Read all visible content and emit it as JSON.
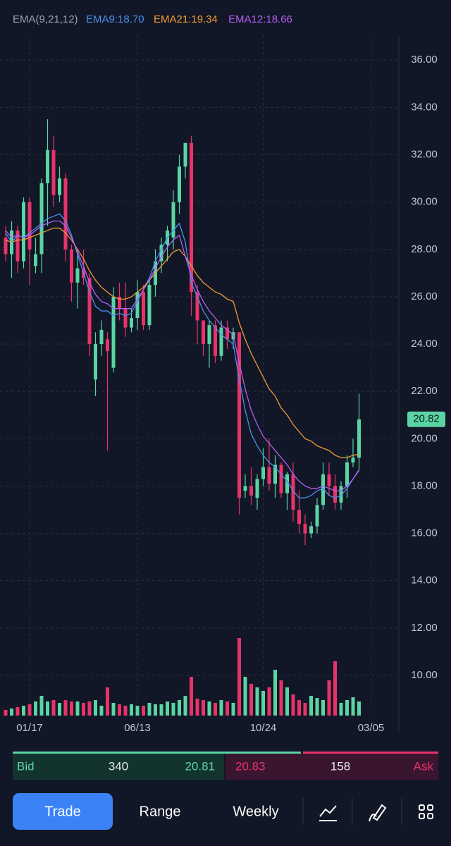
{
  "header": {
    "indicator": "EMA(9,21,12)",
    "ema9": "EMA9:18.70",
    "ema21": "EMA21:19.34",
    "ema12": "EMA12:18.66"
  },
  "chart_data": {
    "type": "candlestick",
    "categories": [
      null,
      null,
      null,
      null,
      "01/17",
      null,
      null,
      null,
      null,
      null,
      null,
      null,
      null,
      null,
      null,
      null,
      null,
      null,
      null,
      null,
      null,
      null,
      "06/13",
      null,
      null,
      null,
      null,
      null,
      null,
      null,
      null,
      null,
      null,
      null,
      null,
      null,
      null,
      null,
      null,
      null,
      null,
      null,
      null,
      "10/24",
      null,
      null,
      null,
      null,
      null,
      null,
      null,
      null,
      null,
      null,
      null,
      null,
      null,
      null,
      null,
      null,
      null,
      "03/05"
    ],
    "open": [
      28.5,
      27.8,
      28.8,
      27.5,
      30,
      27.3,
      27.8,
      30.8,
      32.2,
      30.3,
      31,
      28,
      26.6,
      27.2,
      26.8,
      22.5,
      24,
      24.2,
      23,
      26,
      25.5,
      24.7,
      25.1,
      26.2,
      24.8,
      26.5,
      27.5,
      28.2,
      28.5,
      30,
      31.5,
      32.5,
      26.2,
      25,
      24,
      24.8,
      23.5,
      24.7,
      24.2,
      24.5,
      17.8,
      18,
      17.5,
      18.3,
      18.8,
      18.1,
      18.9,
      17.7,
      18.5,
      17,
      16.4,
      16,
      16.3,
      17.2,
      18.5,
      18,
      17.3,
      18,
      19,
      19.2,
      null,
      null
    ],
    "high": [
      29,
      29.2,
      29,
      30.2,
      30.2,
      28.5,
      31,
      33.5,
      32.8,
      31.5,
      31.2,
      28.2,
      28,
      28,
      27,
      24.5,
      25,
      24.5,
      26.4,
      26.6,
      26.6,
      25.5,
      26.7,
      26.5,
      26.7,
      28,
      28.5,
      29,
      30.5,
      32,
      32.5,
      32.8,
      26.5,
      25,
      25,
      25,
      25,
      25,
      24.7,
      24.5,
      18.5,
      18.8,
      18.5,
      19.6,
      20,
      19.3,
      19,
      18.6,
      19,
      17.8,
      16.8,
      16.5,
      17.5,
      19,
      19,
      18.5,
      18.2,
      19.3,
      20,
      21.9,
      null,
      null
    ],
    "low": [
      27.5,
      26.8,
      27,
      27.2,
      26.5,
      27,
      27,
      29,
      29.8,
      30,
      27.5,
      25.8,
      25.5,
      26.5,
      23.5,
      21.8,
      23.5,
      19.5,
      22.8,
      25,
      24.3,
      24.5,
      24.6,
      24.6,
      24.6,
      26,
      27,
      27.5,
      28,
      29.5,
      31,
      25.2,
      24,
      23.5,
      23,
      23.2,
      23.3,
      23.8,
      23.8,
      16.8,
      17.5,
      17.2,
      17,
      18,
      17.8,
      17.5,
      17.5,
      17,
      16.5,
      16,
      15.5,
      15.8,
      16,
      17,
      17.6,
      17,
      17,
      17.5,
      18.8,
      18.7,
      null,
      null
    ],
    "close": [
      27.8,
      28.8,
      27.5,
      30,
      28,
      27.8,
      30.8,
      32.2,
      30.3,
      31,
      28,
      26.6,
      27.2,
      26.8,
      24,
      24,
      24.6,
      23.7,
      26,
      25.5,
      24.7,
      25.1,
      26.2,
      24.8,
      26.5,
      27.5,
      28.2,
      28.8,
      30,
      31.5,
      32.5,
      26.2,
      25,
      24,
      24.8,
      23.5,
      24.7,
      24.2,
      24.5,
      17.5,
      18,
      17.6,
      18.3,
      18.8,
      18.1,
      18.9,
      17.7,
      18.5,
      17,
      16.4,
      16,
      16.3,
      17.2,
      18.5,
      18,
      17.3,
      18,
      19,
      19.2,
      20.82,
      null,
      null
    ],
    "volume": [
      8,
      10,
      12,
      14,
      16,
      20,
      28,
      20,
      22,
      18,
      22,
      20,
      20,
      18,
      20,
      22,
      14,
      40,
      18,
      16,
      14,
      16,
      14,
      14,
      18,
      16,
      16,
      20,
      18,
      22,
      28,
      55,
      24,
      22,
      20,
      18,
      22,
      20,
      18,
      110,
      55,
      45,
      40,
      35,
      40,
      65,
      50,
      40,
      30,
      22,
      18,
      28,
      25,
      22,
      50,
      77,
      18,
      22,
      26,
      20,
      null,
      null
    ],
    "volume_ylim": [
      0,
      120
    ],
    "up_color": "#5ad4a3",
    "down_color": "#e8336a",
    "series": [
      {
        "name": "EMA9",
        "color": "#4b8ff0",
        "values": [
          28.7,
          28.3,
          28.6,
          28.5,
          28.7,
          28.9,
          29.1,
          29.3,
          29.4,
          29.5,
          29.2,
          28.6,
          27.8,
          27.0,
          26.2,
          25.6,
          25.4,
          25.4,
          25.2,
          25.3,
          25.2,
          25.3,
          25.8,
          26.3,
          26.8,
          27.5,
          28.0,
          28.5,
          28.8,
          29.1,
          28.3,
          26.6,
          26.0,
          25.4,
          25.0,
          24.7,
          24.4,
          24.2,
          24.0,
          22.5,
          21.2,
          20.2,
          19.7,
          19.3,
          19.0,
          18.8,
          18.5,
          18.2,
          17.8,
          17.5,
          17.5,
          17.6,
          17.8,
          17.9,
          17.6,
          17.5,
          17.6,
          17.9,
          18.3,
          18.7,
          null,
          null
        ]
      },
      {
        "name": "EMA21",
        "color": "#f29a38",
        "values": [
          28.4,
          28.3,
          28.4,
          28.4,
          28.5,
          28.6,
          28.7,
          28.8,
          28.9,
          28.9,
          28.7,
          28.4,
          28.0,
          27.6,
          27.1,
          26.7,
          26.4,
          26.2,
          26.0,
          25.9,
          25.9,
          26.0,
          26.2,
          26.4,
          26.7,
          27.0,
          27.3,
          27.6,
          27.9,
          28.0,
          27.7,
          27.3,
          26.9,
          26.6,
          26.4,
          26.2,
          26.1,
          25.9,
          25.8,
          24.9,
          24.2,
          23.6,
          23.1,
          22.6,
          22.1,
          21.8,
          21.3,
          21.0,
          20.6,
          20.3,
          20.0,
          19.9,
          19.7,
          19.6,
          19.5,
          19.3,
          19.2,
          19.2,
          19.3,
          19.34,
          null,
          null
        ]
      },
      {
        "name": "EMA12",
        "color": "#b65df5",
        "values": [
          28.8,
          28.5,
          28.6,
          28.5,
          28.6,
          28.8,
          29.0,
          29.1,
          29.2,
          29.2,
          29.0,
          28.5,
          27.9,
          27.3,
          26.6,
          26.1,
          25.8,
          25.7,
          25.5,
          25.5,
          25.5,
          25.5,
          25.9,
          26.3,
          26.7,
          27.2,
          27.7,
          28.1,
          28.4,
          28.6,
          27.7,
          26.9,
          26.3,
          25.8,
          25.4,
          25.1,
          24.8,
          24.6,
          24.4,
          23.2,
          22.1,
          21.2,
          20.6,
          20.1,
          19.8,
          19.5,
          19.2,
          18.9,
          18.5,
          18.2,
          18.0,
          17.9,
          17.9,
          18.0,
          17.9,
          17.8,
          17.8,
          18.0,
          18.3,
          18.66,
          null,
          null
        ]
      }
    ],
    "ylim": [
      8.3,
      37.2
    ],
    "yticks": [
      {
        "value": 10,
        "label": "10.00"
      },
      {
        "value": 12,
        "label": "12.00"
      },
      {
        "value": 14,
        "label": "14.00"
      },
      {
        "value": 16,
        "label": "16.00"
      },
      {
        "value": 18,
        "label": "18.00"
      },
      {
        "value": 20,
        "label": "20.00"
      },
      {
        "value": 22,
        "label": "22.00"
      },
      {
        "value": 24,
        "label": "24.00"
      },
      {
        "value": 26,
        "label": "26.00"
      },
      {
        "value": 28,
        "label": "28.00"
      },
      {
        "value": 30,
        "label": "30.00"
      },
      {
        "value": 32,
        "label": "32.00"
      },
      {
        "value": 34,
        "label": "34.00"
      },
      {
        "value": 36,
        "label": "36.00"
      }
    ],
    "grid": true,
    "last_price": {
      "value": 20.82,
      "label": "20.82"
    }
  },
  "quote": {
    "bid_label": "Bid",
    "bid_size": "340",
    "bid_price": "20.81",
    "ask_price": "20.83",
    "ask_size": "158",
    "ask_label": "Ask"
  },
  "nav": {
    "trade": "Trade",
    "range": "Range",
    "weekly": "Weekly"
  }
}
